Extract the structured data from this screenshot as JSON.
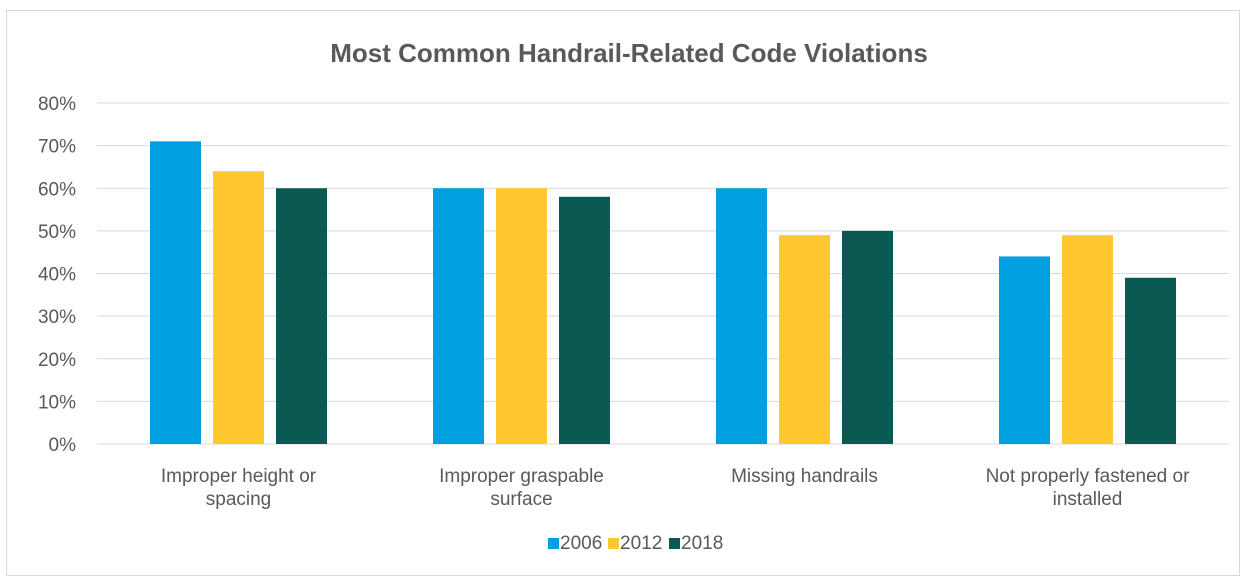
{
  "chart_data": {
    "type": "bar",
    "title": "Most Common Handrail-Related Code Violations",
    "xlabel": "",
    "ylabel": "",
    "categories": [
      [
        "Improper height or",
        "spacing"
      ],
      [
        "Improper graspable",
        "surface"
      ],
      [
        "Missing handrails"
      ],
      [
        "Not properly fastened or",
        "installed"
      ]
    ],
    "series": [
      {
        "name": "2006",
        "color": "#009fdf",
        "values": [
          71,
          60,
          60,
          44
        ]
      },
      {
        "name": "2012",
        "color": "#ffc82e",
        "values": [
          64,
          60,
          49,
          49
        ]
      },
      {
        "name": "2018",
        "color": "#0a5a53",
        "values": [
          60,
          58,
          50,
          39
        ]
      }
    ],
    "ylim": [
      0,
      80
    ],
    "yticks": [
      "0%",
      "10%",
      "20%",
      "30%",
      "40%",
      "50%",
      "60%",
      "70%",
      "80%"
    ],
    "grid": true,
    "legend": "bottom"
  }
}
